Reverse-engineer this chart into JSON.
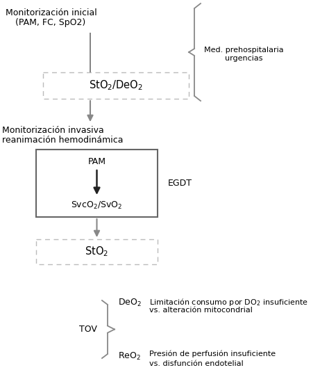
{
  "bg_color": "#ffffff",
  "fig_w": 4.74,
  "fig_h": 5.55,
  "dpi": 100,
  "label_top_left_line1": "Monitorización inicial",
  "label_top_left_line2": "(PAM, FC, SpO2)",
  "label_mid_left_line1": "Monitorización invasiva",
  "label_mid_left_line2": "reanimación hemodinámica",
  "label_right_brace": "Med. prehospitalaria\nurgencias",
  "box1_text": "StO$_2$/DeO$_2$",
  "box2_pam": "PAM",
  "box2_svc": "SvcO$_2$/SvO$_2$",
  "label_egdt": "EGDT",
  "box3_text": "StO$_2$",
  "label_tov": "TOV",
  "label_deo2": "DeO$_2$",
  "label_reo2": "ReO$_2$",
  "desc_deo2_1": "Limitación consumo por DO$_2$ insuficiente",
  "desc_deo2_2": "vs. alteración mitocondrial",
  "desc_reo2_1": "Presión de perfusión insuficiente",
  "desc_reo2_2": "vs. disfunción endotelial",
  "gray_arrow": "#777777",
  "dark_arrow": "#333333",
  "brace_color": "#888888",
  "box_solid_color": "#555555",
  "box_dot_color": "#aaaaaa",
  "fs_main": 9,
  "fs_label": 8,
  "fs_desc": 8
}
